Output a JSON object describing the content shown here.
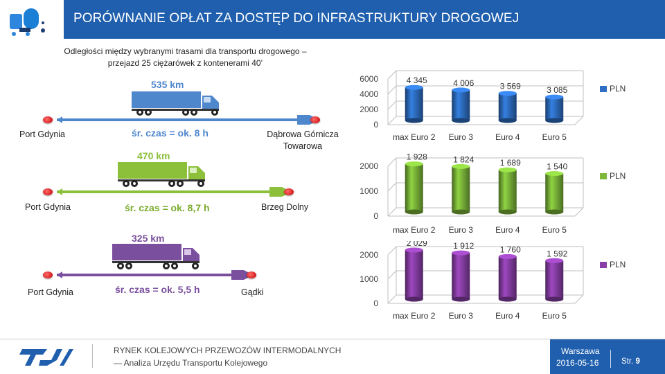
{
  "header": {
    "title": "PORÓWNANIE OPŁAT ZA DOSTĘP DO INFRASTRUKTURY DROGOWEJ",
    "colors": {
      "bar": "#1f5fad",
      "logo_blue": "#2e86de",
      "logo_dark": "#1b3b6f"
    }
  },
  "routes": {
    "caption_line1": "Odległości między wybranymi trasami dla transportu drogowego –",
    "caption_line2": "przejazd 25 ciężarówek z kontenerami 40’",
    "items": [
      {
        "origin": "Port Gdynia",
        "destination_line1": "Dąbrowa Górnicza",
        "destination_line2": "Towarowa",
        "distance": "535 km",
        "travel_time": "śr. czas = ok. 8 h",
        "color": "#4f87cd"
      },
      {
        "origin": "Port Gdynia",
        "destination_line1": "Brzeg Dolny",
        "destination_line2": "",
        "distance": "470 km",
        "travel_time": "śr. czas = ok. 8,7 h",
        "color": "#8cbf3a"
      },
      {
        "origin": "Port Gdynia",
        "destination_line1": "Gądki",
        "destination_line2": "",
        "distance": "325 km",
        "travel_time": "śr. czas = ok. 5,5 h",
        "color": "#7a4f9e"
      }
    ]
  },
  "chart_data": [
    {
      "type": "bar",
      "categories": [
        "max Euro 2",
        "Euro 3",
        "Euro 4",
        "Euro 5"
      ],
      "series": [
        {
          "name": "PLN",
          "values": [
            4345,
            4006,
            3569,
            3085
          ]
        }
      ],
      "value_labels": [
        "4 345",
        "4 006",
        "3 569",
        "3 085"
      ],
      "y_ticks": [
        "0",
        "2000",
        "4000",
        "6000"
      ],
      "ylim": [
        0,
        6000
      ],
      "color": "#2e6fc4",
      "legend": "right"
    },
    {
      "type": "bar",
      "categories": [
        "max Euro 2",
        "Euro 3",
        "Euro 4",
        "Euro 5"
      ],
      "series": [
        {
          "name": "PLN",
          "values": [
            1928,
            1824,
            1689,
            1540
          ]
        }
      ],
      "value_labels": [
        "1 928",
        "1 824",
        "1 689",
        "1 540"
      ],
      "y_ticks": [
        "0",
        "1000",
        "2000"
      ],
      "ylim": [
        0,
        2000
      ],
      "color": "#7db83a",
      "legend": "right"
    },
    {
      "type": "bar",
      "categories": [
        "max Euro 2",
        "Euro 3",
        "Euro 4",
        "Euro 5"
      ],
      "series": [
        {
          "name": "PLN",
          "values": [
            2029,
            1912,
            1760,
            1592
          ]
        }
      ],
      "value_labels": [
        "2 029",
        "1 912",
        "1 760",
        "1 592"
      ],
      "y_ticks": [
        "0",
        "1000",
        "2000"
      ],
      "ylim": [
        0,
        2000
      ],
      "color": "#8a3fa8",
      "legend": "right"
    }
  ],
  "footer": {
    "line1": "RYNEK KOLEJOWYCH PRZEWOZÓW INTERMODALNYCH",
    "line2": "— Analiza Urzędu Transportu Kolejowego",
    "city": "Warszawa",
    "date": "2016-05-16",
    "page_label": "Str.",
    "page_number": "9"
  }
}
